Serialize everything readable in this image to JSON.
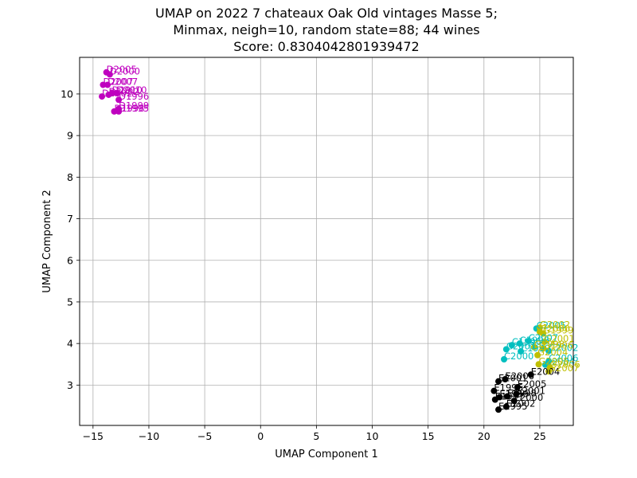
{
  "chart_data": {
    "type": "scatter",
    "title": [
      "UMAP on 2022 7 chateaux Oak Old vintages Masse 5;",
      "Minmax, neigh=10, random state=88; 44 wines",
      "Score: 0.8304042801939472"
    ],
    "xlabel": "UMAP Component 1",
    "ylabel": "UMAP Component 2",
    "xlim": [
      -16.2,
      28.0
    ],
    "ylim": [
      2.03,
      10.88
    ],
    "xticks": [
      -15,
      -10,
      -5,
      0,
      5,
      10,
      15,
      20,
      25
    ],
    "xtick_labels": [
      "−15",
      "−10",
      "−5",
      "0",
      "5",
      "10",
      "15",
      "20",
      "25"
    ],
    "yticks": [
      3,
      4,
      5,
      6,
      7,
      8,
      9,
      10
    ],
    "ytick_labels": [
      "3",
      "4",
      "5",
      "6",
      "7",
      "8",
      "9",
      "10"
    ],
    "grid": true,
    "colors": {
      "D": "#bf00bf",
      "E": "#000000",
      "C": "#00bfbf",
      "G": "#bfbf00"
    },
    "points": [
      {
        "g": "D",
        "x": -13.8,
        "y": 10.52,
        "label": "D2005"
      },
      {
        "g": "D",
        "x": -13.5,
        "y": 10.47,
        "label": "D2000"
      },
      {
        "g": "D",
        "x": -14.1,
        "y": 10.22,
        "label": "D2007"
      },
      {
        "g": "D",
        "x": -13.7,
        "y": 10.22,
        "label": "D2007"
      },
      {
        "g": "D",
        "x": -13.3,
        "y": 10.02,
        "label": "D2010"
      },
      {
        "g": "D",
        "x": -12.9,
        "y": 10.02,
        "label": "D2010"
      },
      {
        "g": "D",
        "x": -14.2,
        "y": 9.94,
        "label": "D2002"
      },
      {
        "g": "D",
        "x": -13.6,
        "y": 9.98,
        "label": "D2002"
      },
      {
        "g": "D",
        "x": -12.7,
        "y": 9.86,
        "label": "D1996"
      },
      {
        "g": "D",
        "x": -12.7,
        "y": 9.64,
        "label": "D1999"
      },
      {
        "g": "D",
        "x": -13.1,
        "y": 9.58,
        "label": "D1998"
      },
      {
        "g": "D",
        "x": -12.7,
        "y": 9.58,
        "label": "D1995"
      },
      {
        "g": "E",
        "x": 24.2,
        "y": 3.25,
        "label": "E2004"
      },
      {
        "g": "E",
        "x": 21.9,
        "y": 3.14,
        "label": "E2006"
      },
      {
        "g": "E",
        "x": 21.3,
        "y": 3.09,
        "label": "E2001"
      },
      {
        "g": "E",
        "x": 23.0,
        "y": 2.95,
        "label": "E2005"
      },
      {
        "g": "E",
        "x": 20.9,
        "y": 2.86,
        "label": "E1996"
      },
      {
        "g": "E",
        "x": 22.9,
        "y": 2.79,
        "label": "E2001"
      },
      {
        "g": "E",
        "x": 21.4,
        "y": 2.71,
        "label": "E1999"
      },
      {
        "g": "E",
        "x": 22.1,
        "y": 2.73,
        "label": "E1998"
      },
      {
        "g": "E",
        "x": 21.0,
        "y": 2.65,
        "label": "E1997"
      },
      {
        "g": "E",
        "x": 22.7,
        "y": 2.62,
        "label": "E2000"
      },
      {
        "g": "E",
        "x": 21.3,
        "y": 2.41,
        "label": "E1995"
      },
      {
        "g": "E",
        "x": 22.0,
        "y": 2.48,
        "label": "E2002"
      },
      {
        "g": "C",
        "x": 24.7,
        "y": 4.36,
        "label": "C2005"
      },
      {
        "g": "C",
        "x": 24.0,
        "y": 4.06,
        "label": "C2007"
      },
      {
        "g": "C",
        "x": 23.2,
        "y": 4.0,
        "label": "C1998"
      },
      {
        "g": "C",
        "x": 22.5,
        "y": 3.96,
        "label": "C1996"
      },
      {
        "g": "C",
        "x": 22.0,
        "y": 3.86,
        "label": "C2001"
      },
      {
        "g": "C",
        "x": 23.3,
        "y": 3.81,
        "label": "C1999"
      },
      {
        "g": "C",
        "x": 25.8,
        "y": 3.82,
        "label": "C2002"
      },
      {
        "g": "C",
        "x": 21.8,
        "y": 3.62,
        "label": "C2000"
      },
      {
        "g": "C",
        "x": 25.8,
        "y": 3.57,
        "label": "C2006"
      },
      {
        "g": "C",
        "x": 25.5,
        "y": 3.49,
        "label": "C2004"
      },
      {
        "g": "G",
        "x": 25.0,
        "y": 4.38,
        "label": "G2002"
      },
      {
        "g": "G",
        "x": 25.3,
        "y": 4.24,
        "label": "G1999"
      },
      {
        "g": "G",
        "x": 25.0,
        "y": 4.28,
        "label": "G2000"
      },
      {
        "g": "G",
        "x": 25.4,
        "y": 4.04,
        "label": "G2001"
      },
      {
        "g": "G",
        "x": 24.5,
        "y": 3.91,
        "label": "G1998"
      },
      {
        "g": "G",
        "x": 25.3,
        "y": 3.88,
        "label": "G1996"
      },
      {
        "g": "G",
        "x": 24.8,
        "y": 3.72,
        "label": "G2004"
      },
      {
        "g": "G",
        "x": 24.9,
        "y": 3.5,
        "label": "G2005"
      },
      {
        "g": "G",
        "x": 25.8,
        "y": 3.33,
        "label": "G2007"
      },
      {
        "g": "G",
        "x": 25.9,
        "y": 3.42,
        "label": "G2006"
      }
    ]
  }
}
